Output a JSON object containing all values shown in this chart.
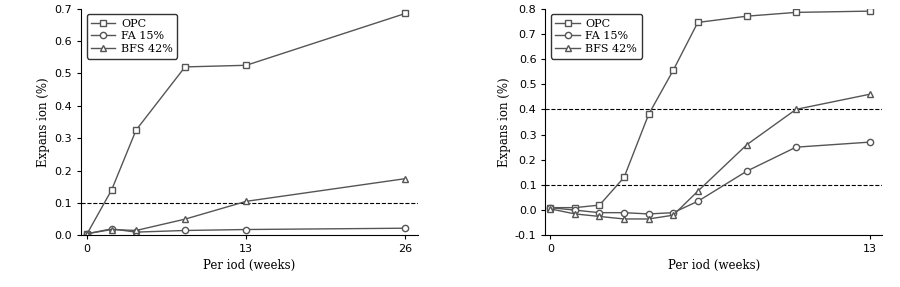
{
  "chart1": {
    "xlabel": "Per iod (weeks)",
    "ylabel": "Expans ion (%)",
    "xlim": [
      -0.5,
      27
    ],
    "ylim": [
      0.0,
      0.7
    ],
    "yticks": [
      0.0,
      0.1,
      0.2,
      0.3,
      0.4,
      0.5,
      0.6,
      0.7
    ],
    "xticks": [
      0,
      13,
      26
    ],
    "hline": 0.1,
    "series": {
      "OPC": {
        "x": [
          0,
          2,
          4,
          8,
          13,
          26
        ],
        "y": [
          0.005,
          0.14,
          0.325,
          0.52,
          0.525,
          0.685
        ],
        "marker": "s",
        "color": "#555555"
      },
      "FA 15%": {
        "x": [
          0,
          2,
          4,
          8,
          13,
          26
        ],
        "y": [
          0.005,
          0.02,
          0.01,
          0.015,
          0.018,
          0.022
        ],
        "marker": "o",
        "color": "#555555"
      },
      "BFS 42%": {
        "x": [
          0,
          2,
          4,
          8,
          13,
          26
        ],
        "y": [
          0.005,
          0.018,
          0.015,
          0.05,
          0.105,
          0.175
        ],
        "marker": "^",
        "color": "#555555"
      }
    }
  },
  "chart2": {
    "xlabel": "Per iod (weeks)",
    "ylabel": "Expans ion (%)",
    "xlim": [
      -0.2,
      13.5
    ],
    "ylim": [
      -0.1,
      0.8
    ],
    "yticks": [
      -0.1,
      0.0,
      0.1,
      0.2,
      0.3,
      0.4,
      0.5,
      0.6,
      0.7,
      0.8
    ],
    "xticks": [
      0,
      13
    ],
    "hlines": [
      0.1,
      0.4
    ],
    "series": {
      "OPC": {
        "x": [
          0,
          1,
          2,
          3,
          4,
          5,
          6,
          8,
          10,
          13
        ],
        "y": [
          0.01,
          0.01,
          0.02,
          0.13,
          0.38,
          0.555,
          0.745,
          0.77,
          0.785,
          0.79
        ],
        "marker": "s",
        "color": "#555555"
      },
      "FA 15%": {
        "x": [
          0,
          1,
          2,
          3,
          4,
          5,
          6,
          8,
          10,
          13
        ],
        "y": [
          0.01,
          0.0,
          -0.01,
          -0.01,
          -0.015,
          -0.01,
          0.035,
          0.155,
          0.25,
          0.27
        ],
        "marker": "o",
        "color": "#555555"
      },
      "BFS 42%": {
        "x": [
          0,
          1,
          2,
          3,
          4,
          5,
          6,
          8,
          10,
          13
        ],
        "y": [
          0.005,
          -0.015,
          -0.025,
          -0.035,
          -0.035,
          -0.02,
          0.075,
          0.26,
          0.4,
          0.46
        ],
        "marker": "^",
        "color": "#555555"
      }
    }
  }
}
